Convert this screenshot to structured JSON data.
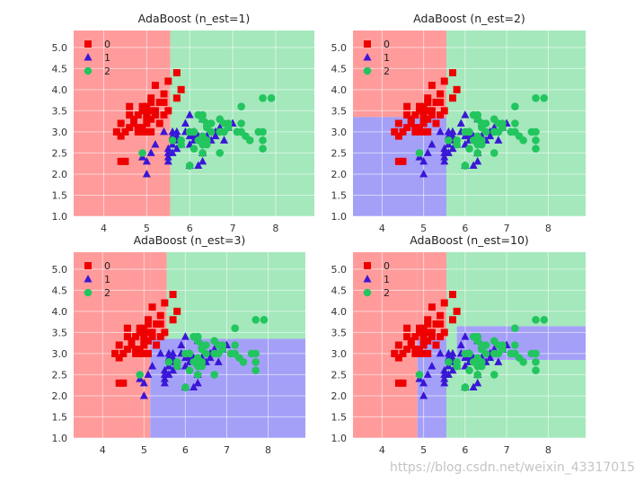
{
  "colors": {
    "region_0": "#ff9b9b",
    "region_1": "#a4a0f8",
    "region_2": "#a4e8bc",
    "point_0": "#ee0000",
    "point_1": "#3a16d6",
    "point_2": "#22c55e",
    "grid": "#ffffff",
    "tick_text": "#333333",
    "title_text": "#222222"
  },
  "watermark": "https://blog.csdn.net/weixin_43317015",
  "chart_data": [
    {
      "type": "scatter",
      "title": "AdaBoost (n_est=1)",
      "xlim": [
        3.3,
        8.9
      ],
      "ylim": [
        1.0,
        5.4
      ],
      "xticks": [
        4,
        5,
        6,
        7,
        8
      ],
      "yticks": [
        "1.0",
        "1.5",
        "2.0",
        "2.5",
        "3.0",
        "3.5",
        "4.0",
        "4.5",
        "5.0"
      ],
      "legend": {
        "placement": "top-left",
        "entries": [
          "0",
          "1",
          "2"
        ]
      },
      "regions": [
        {
          "class": 0,
          "x": [
            3.3,
            5.55
          ],
          "y": [
            1.0,
            5.4
          ]
        },
        {
          "class": 2,
          "x": [
            5.55,
            8.9
          ],
          "y": [
            1.0,
            5.4
          ]
        }
      ]
    },
    {
      "type": "scatter",
      "title": "AdaBoost (n_est=2)",
      "xlim": [
        3.3,
        8.9
      ],
      "ylim": [
        1.0,
        5.4
      ],
      "xticks": [
        4,
        5,
        6,
        7,
        8
      ],
      "yticks": [
        "1.0",
        "1.5",
        "2.0",
        "2.5",
        "3.0",
        "3.5",
        "4.0",
        "4.5",
        "5.0"
      ],
      "legend": {
        "placement": "top-left",
        "entries": [
          "0",
          "1",
          "2"
        ]
      },
      "regions": [
        {
          "class": 0,
          "x": [
            3.3,
            5.55
          ],
          "y": [
            3.35,
            5.4
          ]
        },
        {
          "class": 1,
          "x": [
            3.3,
            5.55
          ],
          "y": [
            1.0,
            3.35
          ]
        },
        {
          "class": 2,
          "x": [
            5.55,
            8.9
          ],
          "y": [
            1.0,
            5.4
          ]
        }
      ]
    },
    {
      "type": "scatter",
      "title": "AdaBoost (n_est=3)",
      "xlim": [
        3.3,
        8.9
      ],
      "ylim": [
        1.0,
        5.4
      ],
      "xticks": [
        4,
        5,
        6,
        7,
        8
      ],
      "yticks": [
        "1.0",
        "1.5",
        "2.0",
        "2.5",
        "3.0",
        "3.5",
        "4.0",
        "4.5",
        "5.0"
      ],
      "legend": {
        "placement": "top-left",
        "entries": [
          "0",
          "1",
          "2"
        ]
      },
      "regions": [
        {
          "class": 0,
          "x": [
            3.3,
            5.15
          ],
          "y": [
            1.0,
            5.4
          ]
        },
        {
          "class": 0,
          "x": [
            5.15,
            5.55
          ],
          "y": [
            3.35,
            5.4
          ]
        },
        {
          "class": 1,
          "x": [
            5.15,
            8.9
          ],
          "y": [
            1.0,
            3.35
          ]
        },
        {
          "class": 2,
          "x": [
            5.55,
            8.9
          ],
          "y": [
            3.35,
            5.4
          ]
        }
      ]
    },
    {
      "type": "scatter",
      "title": "AdaBoost (n_est=10)",
      "xlim": [
        3.3,
        8.9
      ],
      "ylim": [
        1.0,
        5.4
      ],
      "xticks": [
        4,
        5,
        6,
        7,
        8
      ],
      "yticks": [
        "1.0",
        "1.5",
        "2.0",
        "2.5",
        "3.0",
        "3.5",
        "4.0",
        "4.5",
        "5.0"
      ],
      "legend": {
        "placement": "top-left",
        "entries": [
          "0",
          "1",
          "2"
        ]
      },
      "regions": [
        {
          "class": 0,
          "x": [
            3.3,
            4.85
          ],
          "y": [
            1.0,
            5.4
          ]
        },
        {
          "class": 0,
          "x": [
            4.85,
            5.55
          ],
          "y": [
            3.35,
            5.4
          ]
        },
        {
          "class": 1,
          "x": [
            4.85,
            5.55
          ],
          "y": [
            1.0,
            3.35
          ]
        },
        {
          "class": 2,
          "x": [
            5.55,
            5.8
          ],
          "y": [
            1.0,
            5.4
          ]
        },
        {
          "class": 2,
          "x": [
            5.8,
            8.9
          ],
          "y": [
            1.0,
            2.85
          ]
        },
        {
          "class": 1,
          "x": [
            5.8,
            8.9
          ],
          "y": [
            2.85,
            3.65
          ]
        },
        {
          "class": 2,
          "x": [
            5.8,
            8.9
          ],
          "y": [
            3.65,
            5.4
          ]
        }
      ]
    }
  ],
  "points": {
    "class_0": [
      [
        4.4,
        2.3
      ],
      [
        4.3,
        3.0
      ],
      [
        4.4,
        2.9
      ],
      [
        4.4,
        3.2
      ],
      [
        4.5,
        3.0
      ],
      [
        4.6,
        3.1
      ],
      [
        4.6,
        3.4
      ],
      [
        4.6,
        3.6
      ],
      [
        4.7,
        3.2
      ],
      [
        4.8,
        3.0
      ],
      [
        4.8,
        3.4
      ],
      [
        4.8,
        3.1
      ],
      [
        4.9,
        3.0
      ],
      [
        4.9,
        3.1
      ],
      [
        4.9,
        3.6
      ],
      [
        5.0,
        3.0
      ],
      [
        5.0,
        3.2
      ],
      [
        5.0,
        3.4
      ],
      [
        5.0,
        3.5
      ],
      [
        5.0,
        3.3
      ],
      [
        5.0,
        3.6
      ],
      [
        5.1,
        3.5
      ],
      [
        5.1,
        3.8
      ],
      [
        5.1,
        3.3
      ],
      [
        5.1,
        3.7
      ],
      [
        5.2,
        3.5
      ],
      [
        5.2,
        3.4
      ],
      [
        5.2,
        4.1
      ],
      [
        5.3,
        3.7
      ],
      [
        5.4,
        3.9
      ],
      [
        5.4,
        3.4
      ],
      [
        5.4,
        3.7
      ],
      [
        5.5,
        4.2
      ],
      [
        5.5,
        3.5
      ],
      [
        5.7,
        4.4
      ],
      [
        5.7,
        3.8
      ],
      [
        5.8,
        4.0
      ],
      [
        4.9,
        3.5
      ],
      [
        4.5,
        2.3
      ],
      [
        5.1,
        3.0
      ],
      [
        4.7,
        3.3
      ],
      [
        5.3,
        3.2
      ]
    ],
    "class_1": [
      [
        4.9,
        2.4
      ],
      [
        5.0,
        2.0
      ],
      [
        5.0,
        2.3
      ],
      [
        5.1,
        2.5
      ],
      [
        5.2,
        2.7
      ],
      [
        5.4,
        3.0
      ],
      [
        5.5,
        2.3
      ],
      [
        5.5,
        2.4
      ],
      [
        5.5,
        2.5
      ],
      [
        5.5,
        2.6
      ],
      [
        5.6,
        2.5
      ],
      [
        5.6,
        2.7
      ],
      [
        5.6,
        2.9
      ],
      [
        5.6,
        3.0
      ],
      [
        5.7,
        2.6
      ],
      [
        5.7,
        2.8
      ],
      [
        5.7,
        2.9
      ],
      [
        5.7,
        3.0
      ],
      [
        5.8,
        2.7
      ],
      [
        5.9,
        3.0
      ],
      [
        5.9,
        3.2
      ],
      [
        6.0,
        2.2
      ],
      [
        6.0,
        2.7
      ],
      [
        6.0,
        2.9
      ],
      [
        6.0,
        3.4
      ],
      [
        6.1,
        2.8
      ],
      [
        6.1,
        3.0
      ],
      [
        6.2,
        2.2
      ],
      [
        6.2,
        2.9
      ],
      [
        6.3,
        2.3
      ],
      [
        6.3,
        2.5
      ],
      [
        6.3,
        3.3
      ],
      [
        6.4,
        2.9
      ],
      [
        6.4,
        3.2
      ],
      [
        6.5,
        2.8
      ],
      [
        6.6,
        2.9
      ],
      [
        6.6,
        3.0
      ],
      [
        6.7,
        3.1
      ],
      [
        6.7,
        3.0
      ],
      [
        6.8,
        2.8
      ],
      [
        6.9,
        3.1
      ],
      [
        7.0,
        3.2
      ],
      [
        6.1,
        2.9
      ]
    ],
    "class_2": [
      [
        4.9,
        2.5
      ],
      [
        5.6,
        2.8
      ],
      [
        5.8,
        2.7
      ],
      [
        5.8,
        2.8
      ],
      [
        6.0,
        2.2
      ],
      [
        6.0,
        3.0
      ],
      [
        6.1,
        2.6
      ],
      [
        6.1,
        3.0
      ],
      [
        6.2,
        2.8
      ],
      [
        6.2,
        3.4
      ],
      [
        6.3,
        2.5
      ],
      [
        6.3,
        2.7
      ],
      [
        6.3,
        2.8
      ],
      [
        6.3,
        2.9
      ],
      [
        6.3,
        3.3
      ],
      [
        6.3,
        3.4
      ],
      [
        6.4,
        2.7
      ],
      [
        6.4,
        2.8
      ],
      [
        6.4,
        3.1
      ],
      [
        6.4,
        3.2
      ],
      [
        6.5,
        3.0
      ],
      [
        6.5,
        3.2
      ],
      [
        6.7,
        2.5
      ],
      [
        6.7,
        3.3
      ],
      [
        6.8,
        3.0
      ],
      [
        6.8,
        3.2
      ],
      [
        6.9,
        3.1
      ],
      [
        6.9,
        3.2
      ],
      [
        7.1,
        3.0
      ],
      [
        7.2,
        3.0
      ],
      [
        7.2,
        3.2
      ],
      [
        7.2,
        3.6
      ],
      [
        7.3,
        2.9
      ],
      [
        7.4,
        2.8
      ],
      [
        7.6,
        3.0
      ],
      [
        7.7,
        2.6
      ],
      [
        7.7,
        2.8
      ],
      [
        7.7,
        3.0
      ],
      [
        7.7,
        3.8
      ],
      [
        7.9,
        3.8
      ],
      [
        6.0,
        2.2
      ],
      [
        6.7,
        3.0
      ]
    ]
  }
}
